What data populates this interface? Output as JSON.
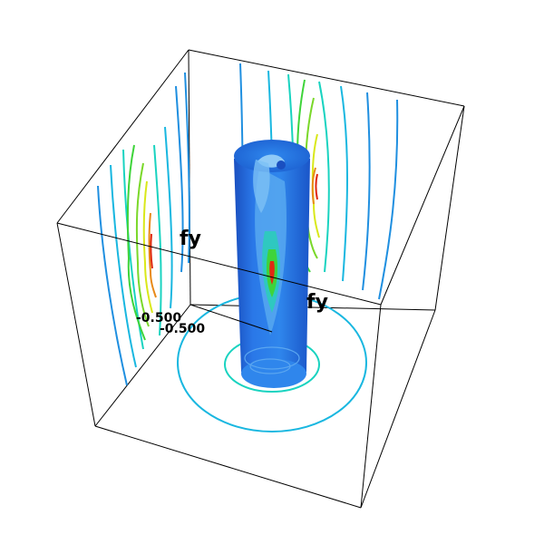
{
  "scene": {
    "axis_labels": {
      "left_axis": "fy",
      "right_axis": "fy"
    },
    "tick_labels": {
      "first": "-0.500",
      "second": "-0.500"
    },
    "colors": {
      "frame": "#000000",
      "background": "#ffffff",
      "cylinder_dark": "#1a55c8",
      "cylinder_mid": "#2a78e8",
      "cylinder_light": "#58b0f5",
      "contour_low": "#1f8fe0",
      "contour_mid": "#19d3c0",
      "contour_green": "#3ed43a",
      "contour_yellow": "#d9e81a",
      "contour_orange": "#e88a18",
      "contour_red": "#e02a12"
    }
  }
}
